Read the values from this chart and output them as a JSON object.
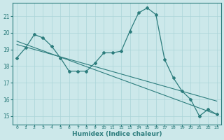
{
  "x": [
    0,
    1,
    2,
    3,
    4,
    5,
    6,
    7,
    8,
    9,
    10,
    11,
    12,
    13,
    14,
    15,
    16,
    17,
    18,
    19,
    20,
    21,
    22,
    23
  ],
  "line1": [
    18.5,
    19.1,
    19.9,
    19.7,
    19.2,
    18.5,
    17.7,
    17.7,
    17.7,
    18.2,
    18.8,
    18.8,
    18.9,
    20.1,
    21.2,
    21.5,
    21.1,
    18.4,
    17.3,
    16.5,
    16.0,
    15.0,
    15.4,
    15.1
  ],
  "trend1": [
    19.5,
    15.1
  ],
  "trend1_x": [
    0,
    23
  ],
  "trend2": [
    19.3,
    15.9
  ],
  "trend2_x": [
    0,
    23
  ],
  "bg_color": "#cce8ea",
  "grid_color": "#aad4d8",
  "line_color": "#2d7d7d",
  "xlabel": "Humidex (Indice chaleur)",
  "ylim": [
    14.5,
    21.8
  ],
  "xlim": [
    -0.5,
    23.5
  ],
  "yticks": [
    15,
    16,
    17,
    18,
    19,
    20,
    21
  ],
  "xticks": [
    0,
    1,
    2,
    3,
    4,
    5,
    6,
    7,
    8,
    9,
    10,
    11,
    12,
    13,
    14,
    15,
    16,
    17,
    18,
    19,
    20,
    21,
    22,
    23
  ]
}
